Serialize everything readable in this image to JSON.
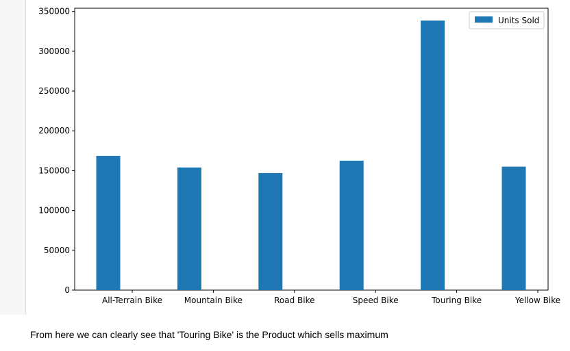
{
  "caption": "From here we can clearly see that 'Touring Bike' is the Product which sells maximum",
  "chart_data": {
    "type": "bar",
    "categories": [
      "All-Terrain Bike",
      "Mountain Bike",
      "Road Bike",
      "Speed Bike",
      "Touring Bike",
      "Yellow Bike"
    ],
    "series": [
      {
        "name": "Units Sold",
        "values": [
          168500,
          154000,
          147000,
          162500,
          338500,
          155000
        ],
        "color": "#1f77b4"
      }
    ],
    "yticks": [
      0,
      50000,
      100000,
      150000,
      200000,
      250000,
      300000,
      350000
    ],
    "ylim": [
      0,
      354000
    ],
    "legend_position": "top-right",
    "grid": false
  }
}
